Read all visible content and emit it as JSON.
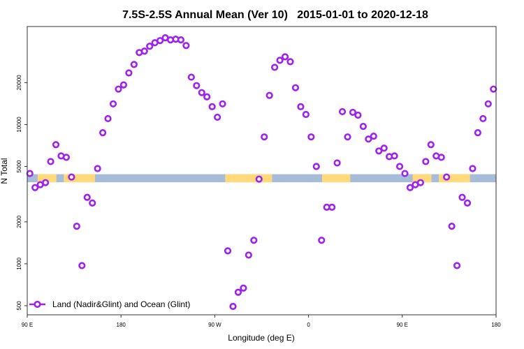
{
  "chart_data": {
    "type": "scatter",
    "title": "7.5S-2.5S Annual Mean (Ver 10)   2015-01-01 to 2020-12-18",
    "xlabel": "Longitude (deg E)",
    "ylabel": "N Total",
    "x_range_deg_east_unwrapped": [
      90,
      540
    ],
    "x_ticks": [
      {
        "lon": 90,
        "label": "90 E"
      },
      {
        "lon": 180,
        "label": "180"
      },
      {
        "lon": -90,
        "label": "90 W"
      },
      {
        "lon": 0,
        "label": "0"
      },
      {
        "lon": 90,
        "label": "90 E"
      },
      {
        "lon": 180,
        "label": "180"
      }
    ],
    "y_scale": "log",
    "ylim": [
      430,
      50600
    ],
    "y_ticks": [
      500,
      1000,
      2000,
      5000,
      10000,
      20000
    ],
    "grid": false,
    "legend": {
      "placement": "bottom-left",
      "entries": [
        "Land (Nadir&Glint) and Ocean (Glint)"
      ]
    },
    "colors": {
      "series": "#a020f0",
      "ocean": "#a7bcd9",
      "land": "#ffd97a"
    },
    "land_mask_band": {
      "y_value_range": [
        3850,
        4400
      ],
      "land_lon_segments": [
        [
          100,
          118
        ],
        [
          125,
          155
        ],
        [
          -80,
          -35
        ],
        [
          13,
          40
        ]
      ]
    },
    "series": [
      {
        "name": "Land (Nadir&Glint) and Ocean (Glint)",
        "lon": [
          92.5,
          97.5,
          102.5,
          107.5,
          112.5,
          117.5,
          122.5,
          127.5,
          132.5,
          137.5,
          142.5,
          147.5,
          152.5,
          157.5,
          162.5,
          167.5,
          172.5,
          177.5,
          -177.5,
          -172.5,
          -167.5,
          -162.5,
          -157.5,
          -152.5,
          -147.5,
          -142.5,
          -137.5,
          -132.5,
          -127.5,
          -122.5,
          -117.5,
          -112.5,
          -107.5,
          -102.5,
          -97.5,
          -92.5,
          -87.5,
          -82.5,
          -77.5,
          -72.5,
          -67.5,
          -62.5,
          -57.5,
          -52.5,
          -47.5,
          -42.5,
          -37.5,
          -32.5,
          -27.5,
          -22.5,
          -17.5,
          -12.5,
          -7.5,
          -2.5,
          2.5,
          7.5,
          12.5,
          17.5,
          22.5,
          27.5,
          32.5,
          37.5,
          42.5,
          47.5,
          52.5,
          57.5,
          62.5,
          67.5,
          72.5,
          77.5,
          82.5,
          87.5
        ],
        "values": [
          4450,
          3527,
          3696,
          3826,
          5425,
          7170,
          5953,
          5816,
          4200,
          1860,
          970,
          3000,
          2732,
          4830,
          8740,
          11030,
          14080,
          17970,
          19270,
          23480,
          27000,
          32900,
          33680,
          36520,
          38710,
          40090,
          42000,
          40560,
          41030,
          40560,
          36950,
          21890,
          19040,
          16960,
          15810,
          13440,
          11290,
          14080,
          1238,
          494,
          624,
          669,
          1155,
          1475,
          4056,
          8150,
          16190,
          25770,
          28940,
          30680,
          28280,
          18390,
          13440,
          11820,
          8150,
          5000,
          1475,
          2548,
          2548,
          5300,
          12380,
          8150,
          12240,
          11680,
          9700,
          7870,
          8250,
          6460,
          6766,
          5885,
          5953,
          5000
        ]
      }
    ]
  }
}
